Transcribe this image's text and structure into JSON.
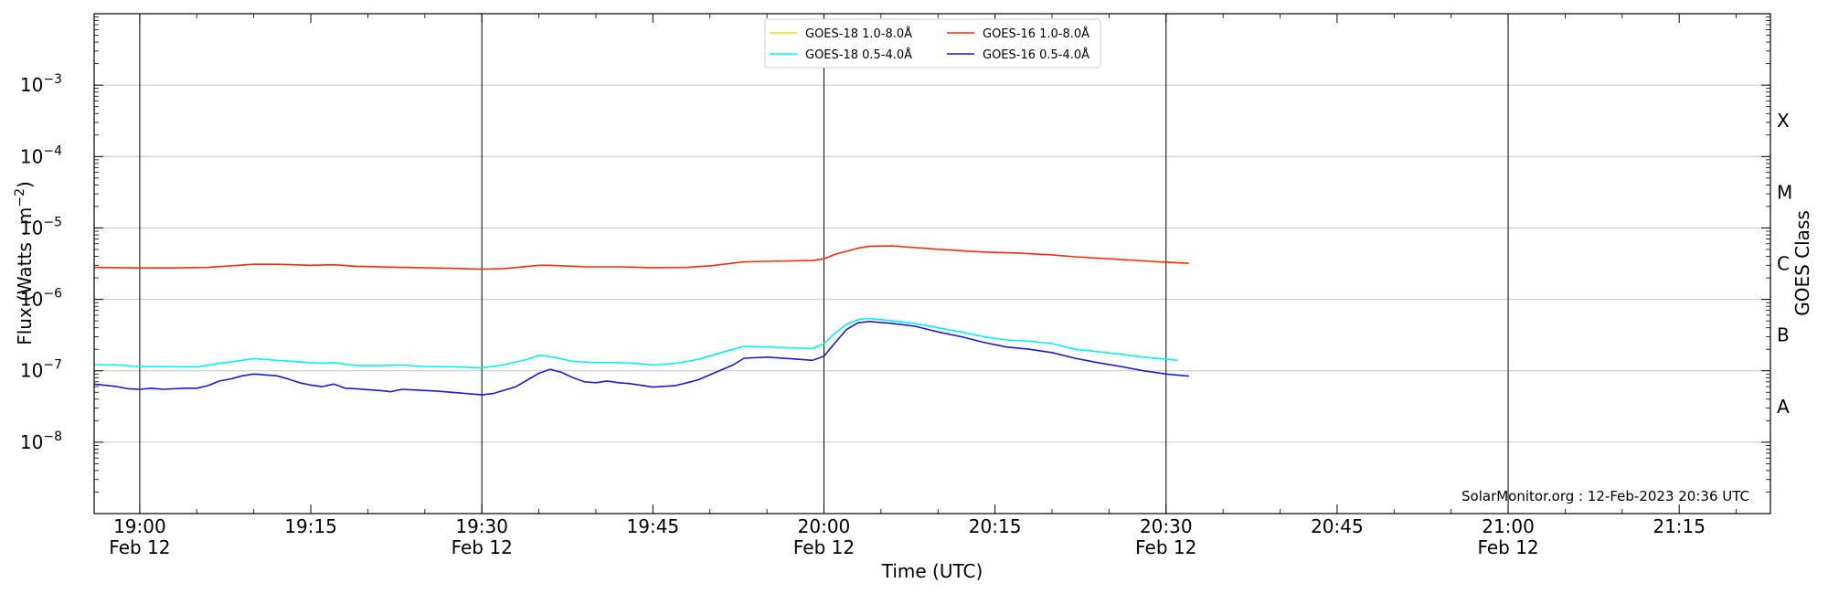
{
  "chart_data": {
    "type": "line",
    "xlabel": "Time (UTC)",
    "ylabel": "Flux (Watts · m",
    "ylabel_sup": "−2",
    "ylabel_close": ")",
    "ylabel_right": "GOES Class",
    "x_range": [
      "18:56",
      "21:23"
    ],
    "ylim": [
      1e-09,
      0.01
    ],
    "y_scale": "log",
    "y_ticks": [
      {
        "value": 1e-08,
        "base": "10",
        "exp": "−8"
      },
      {
        "value": 1e-07,
        "base": "10",
        "exp": "−7"
      },
      {
        "value": 1e-06,
        "base": "10",
        "exp": "−6"
      },
      {
        "value": 1e-05,
        "base": "10",
        "exp": "−5"
      },
      {
        "value": 0.0001,
        "base": "10",
        "exp": "−4"
      },
      {
        "value": 0.001,
        "base": "10",
        "exp": "−3"
      }
    ],
    "x_ticks": [
      {
        "time": "19:00",
        "line1": "19:00",
        "line2": "Feb 12",
        "vline": true
      },
      {
        "time": "19:15",
        "line1": "19:15",
        "line2": "",
        "vline": false
      },
      {
        "time": "19:30",
        "line1": "19:30",
        "line2": "Feb 12",
        "vline": true
      },
      {
        "time": "19:45",
        "line1": "19:45",
        "line2": "",
        "vline": false
      },
      {
        "time": "20:00",
        "line1": "20:00",
        "line2": "Feb 12",
        "vline": true
      },
      {
        "time": "20:15",
        "line1": "20:15",
        "line2": "",
        "vline": false
      },
      {
        "time": "20:30",
        "line1": "20:30",
        "line2": "Feb 12",
        "vline": true
      },
      {
        "time": "20:45",
        "line1": "20:45",
        "line2": "",
        "vline": false
      },
      {
        "time": "21:00",
        "line1": "21:00",
        "line2": "Feb 12",
        "vline": true
      },
      {
        "time": "21:15",
        "line1": "21:15",
        "line2": "",
        "vline": false
      }
    ],
    "goes_classes": [
      {
        "label": "X",
        "value": 0.000316
      },
      {
        "label": "M",
        "value": 3.16e-05
      },
      {
        "label": "C",
        "value": 3.16e-06
      },
      {
        "label": "B",
        "value": 3.16e-07
      },
      {
        "label": "A",
        "value": 3.16e-08
      }
    ],
    "grid": true,
    "legend_position": "top-center",
    "annotation": "SolarMonitor.org : 12-Feb-2023 20:36 UTC",
    "series": [
      {
        "name": "GOES-18 1.0-8.0Å",
        "color": "#ffd700",
        "points": []
      },
      {
        "name": "GOES-16 1.0-8.0Å",
        "color": "#ff2a00",
        "points": [
          [
            "18:56",
            2.8e-06
          ],
          [
            "19:00",
            2.75e-06
          ],
          [
            "19:03",
            2.75e-06
          ],
          [
            "19:06",
            2.8e-06
          ],
          [
            "19:08",
            2.95e-06
          ],
          [
            "19:10",
            3.1e-06
          ],
          [
            "19:12",
            3.1e-06
          ],
          [
            "19:15",
            3e-06
          ],
          [
            "19:17",
            3.05e-06
          ],
          [
            "19:19",
            2.9e-06
          ],
          [
            "19:23",
            2.8e-06
          ],
          [
            "19:27",
            2.72e-06
          ],
          [
            "19:30",
            2.65e-06
          ],
          [
            "19:32",
            2.7e-06
          ],
          [
            "19:35",
            3e-06
          ],
          [
            "19:36",
            3e-06
          ],
          [
            "19:39",
            2.85e-06
          ],
          [
            "19:42",
            2.85e-06
          ],
          [
            "19:45",
            2.78e-06
          ],
          [
            "19:48",
            2.8e-06
          ],
          [
            "19:50",
            2.95e-06
          ],
          [
            "19:53",
            3.35e-06
          ],
          [
            "19:57",
            3.45e-06
          ],
          [
            "19:59",
            3.5e-06
          ],
          [
            "20:00",
            3.7e-06
          ],
          [
            "20:01",
            4.3e-06
          ],
          [
            "20:03",
            5.2e-06
          ],
          [
            "20:04",
            5.55e-06
          ],
          [
            "20:06",
            5.6e-06
          ],
          [
            "20:08",
            5.3e-06
          ],
          [
            "20:11",
            4.9e-06
          ],
          [
            "20:14",
            4.6e-06
          ],
          [
            "20:17",
            4.45e-06
          ],
          [
            "20:20",
            4.2e-06
          ],
          [
            "20:22",
            3.95e-06
          ],
          [
            "20:25",
            3.7e-06
          ],
          [
            "20:28",
            3.45e-06
          ],
          [
            "20:31",
            3.25e-06
          ],
          [
            "20:32",
            3.2e-06
          ]
        ]
      },
      {
        "name": "GOES-18 0.5-4.0Å",
        "color": "#00f5f0",
        "points": [
          [
            "18:56",
            1.22e-07
          ],
          [
            "18:58",
            1.2e-07
          ],
          [
            "19:00",
            1.15e-07
          ],
          [
            "19:02",
            1.15e-07
          ],
          [
            "19:04",
            1.13e-07
          ],
          [
            "19:05",
            1.13e-07
          ],
          [
            "19:07",
            1.27e-07
          ],
          [
            "19:09",
            1.4e-07
          ],
          [
            "19:10",
            1.48e-07
          ],
          [
            "19:12",
            1.4e-07
          ],
          [
            "19:15",
            1.3e-07
          ],
          [
            "19:16",
            1.27e-07
          ],
          [
            "19:17",
            1.3e-07
          ],
          [
            "19:19",
            1.18e-07
          ],
          [
            "19:21",
            1.18e-07
          ],
          [
            "19:23",
            1.2e-07
          ],
          [
            "19:25",
            1.15e-07
          ],
          [
            "19:28",
            1.13e-07
          ],
          [
            "19:30",
            1.1e-07
          ],
          [
            "19:32",
            1.22e-07
          ],
          [
            "19:34",
            1.45e-07
          ],
          [
            "19:35",
            1.65e-07
          ],
          [
            "19:36",
            1.58e-07
          ],
          [
            "19:38",
            1.35e-07
          ],
          [
            "19:40",
            1.3e-07
          ],
          [
            "19:42",
            1.3e-07
          ],
          [
            "19:44",
            1.25e-07
          ],
          [
            "19:45",
            1.2e-07
          ],
          [
            "19:47",
            1.27e-07
          ],
          [
            "19:49",
            1.45e-07
          ],
          [
            "19:51",
            1.8e-07
          ],
          [
            "19:53",
            2.2e-07
          ],
          [
            "19:55",
            2.15e-07
          ],
          [
            "19:57",
            2.1e-07
          ],
          [
            "19:59",
            2.05e-07
          ],
          [
            "20:00",
            2.4e-07
          ],
          [
            "20:01",
            3.4e-07
          ],
          [
            "20:02",
            4.5e-07
          ],
          [
            "20:03",
            5.2e-07
          ],
          [
            "20:04",
            5.4e-07
          ],
          [
            "20:06",
            5e-07
          ],
          [
            "20:08",
            4.6e-07
          ],
          [
            "20:10",
            4e-07
          ],
          [
            "20:12",
            3.5e-07
          ],
          [
            "20:14",
            3e-07
          ],
          [
            "20:16",
            2.7e-07
          ],
          [
            "20:18",
            2.6e-07
          ],
          [
            "20:20",
            2.4e-07
          ],
          [
            "20:22",
            2e-07
          ],
          [
            "20:24",
            1.85e-07
          ],
          [
            "20:26",
            1.7e-07
          ],
          [
            "20:28",
            1.55e-07
          ],
          [
            "20:30",
            1.45e-07
          ],
          [
            "20:31",
            1.4e-07
          ]
        ]
      },
      {
        "name": "GOES-16 0.5-4.0Å",
        "color": "#1a1ad6",
        "points": [
          [
            "18:56",
            6.5e-08
          ],
          [
            "18:58",
            6e-08
          ],
          [
            "18:59",
            5.6e-08
          ],
          [
            "19:00",
            5.5e-08
          ],
          [
            "19:01",
            5.7e-08
          ],
          [
            "19:02",
            5.5e-08
          ],
          [
            "19:04",
            5.7e-08
          ],
          [
            "19:05",
            5.7e-08
          ],
          [
            "19:06",
            6.2e-08
          ],
          [
            "19:07",
            7.2e-08
          ],
          [
            "19:08",
            7.7e-08
          ],
          [
            "19:09",
            8.5e-08
          ],
          [
            "19:10",
            9e-08
          ],
          [
            "19:12",
            8.5e-08
          ],
          [
            "19:13",
            7.7e-08
          ],
          [
            "19:14",
            6.8e-08
          ],
          [
            "19:15",
            6.3e-08
          ],
          [
            "19:16",
            6e-08
          ],
          [
            "19:17",
            6.5e-08
          ],
          [
            "19:18",
            5.7e-08
          ],
          [
            "19:19",
            5.6e-08
          ],
          [
            "19:21",
            5.3e-08
          ],
          [
            "19:22",
            5.1e-08
          ],
          [
            "19:23",
            5.5e-08
          ],
          [
            "19:25",
            5.3e-08
          ],
          [
            "19:26",
            5.2e-08
          ],
          [
            "19:28",
            4.9e-08
          ],
          [
            "19:30",
            4.6e-08
          ],
          [
            "19:31",
            4.8e-08
          ],
          [
            "19:33",
            6e-08
          ],
          [
            "19:35",
            9.2e-08
          ],
          [
            "19:36",
            1.05e-07
          ],
          [
            "19:37",
            9.5e-08
          ],
          [
            "19:38",
            8e-08
          ],
          [
            "19:39",
            7e-08
          ],
          [
            "19:40",
            6.8e-08
          ],
          [
            "19:41",
            7.2e-08
          ],
          [
            "19:42",
            6.8e-08
          ],
          [
            "19:43",
            6.6e-08
          ],
          [
            "19:45",
            5.9e-08
          ],
          [
            "19:47",
            6.2e-08
          ],
          [
            "19:48",
            6.8e-08
          ],
          [
            "19:49",
            7.5e-08
          ],
          [
            "19:50",
            8.8e-08
          ],
          [
            "19:52",
            1.2e-07
          ],
          [
            "19:53",
            1.5e-07
          ],
          [
            "19:55",
            1.55e-07
          ],
          [
            "19:57",
            1.48e-07
          ],
          [
            "19:59",
            1.4e-07
          ],
          [
            "20:00",
            1.6e-07
          ],
          [
            "20:01",
            2.5e-07
          ],
          [
            "20:02",
            3.8e-07
          ],
          [
            "20:03",
            4.7e-07
          ],
          [
            "20:04",
            4.9e-07
          ],
          [
            "20:06",
            4.6e-07
          ],
          [
            "20:08",
            4.2e-07
          ],
          [
            "20:10",
            3.5e-07
          ],
          [
            "20:12",
            3e-07
          ],
          [
            "20:14",
            2.5e-07
          ],
          [
            "20:16",
            2.15e-07
          ],
          [
            "20:18",
            2e-07
          ],
          [
            "20:20",
            1.8e-07
          ],
          [
            "20:22",
            1.5e-07
          ],
          [
            "20:24",
            1.3e-07
          ],
          [
            "20:26",
            1.15e-07
          ],
          [
            "20:28",
            1e-07
          ],
          [
            "20:30",
            9e-08
          ],
          [
            "20:32",
            8.4e-08
          ]
        ]
      }
    ]
  }
}
